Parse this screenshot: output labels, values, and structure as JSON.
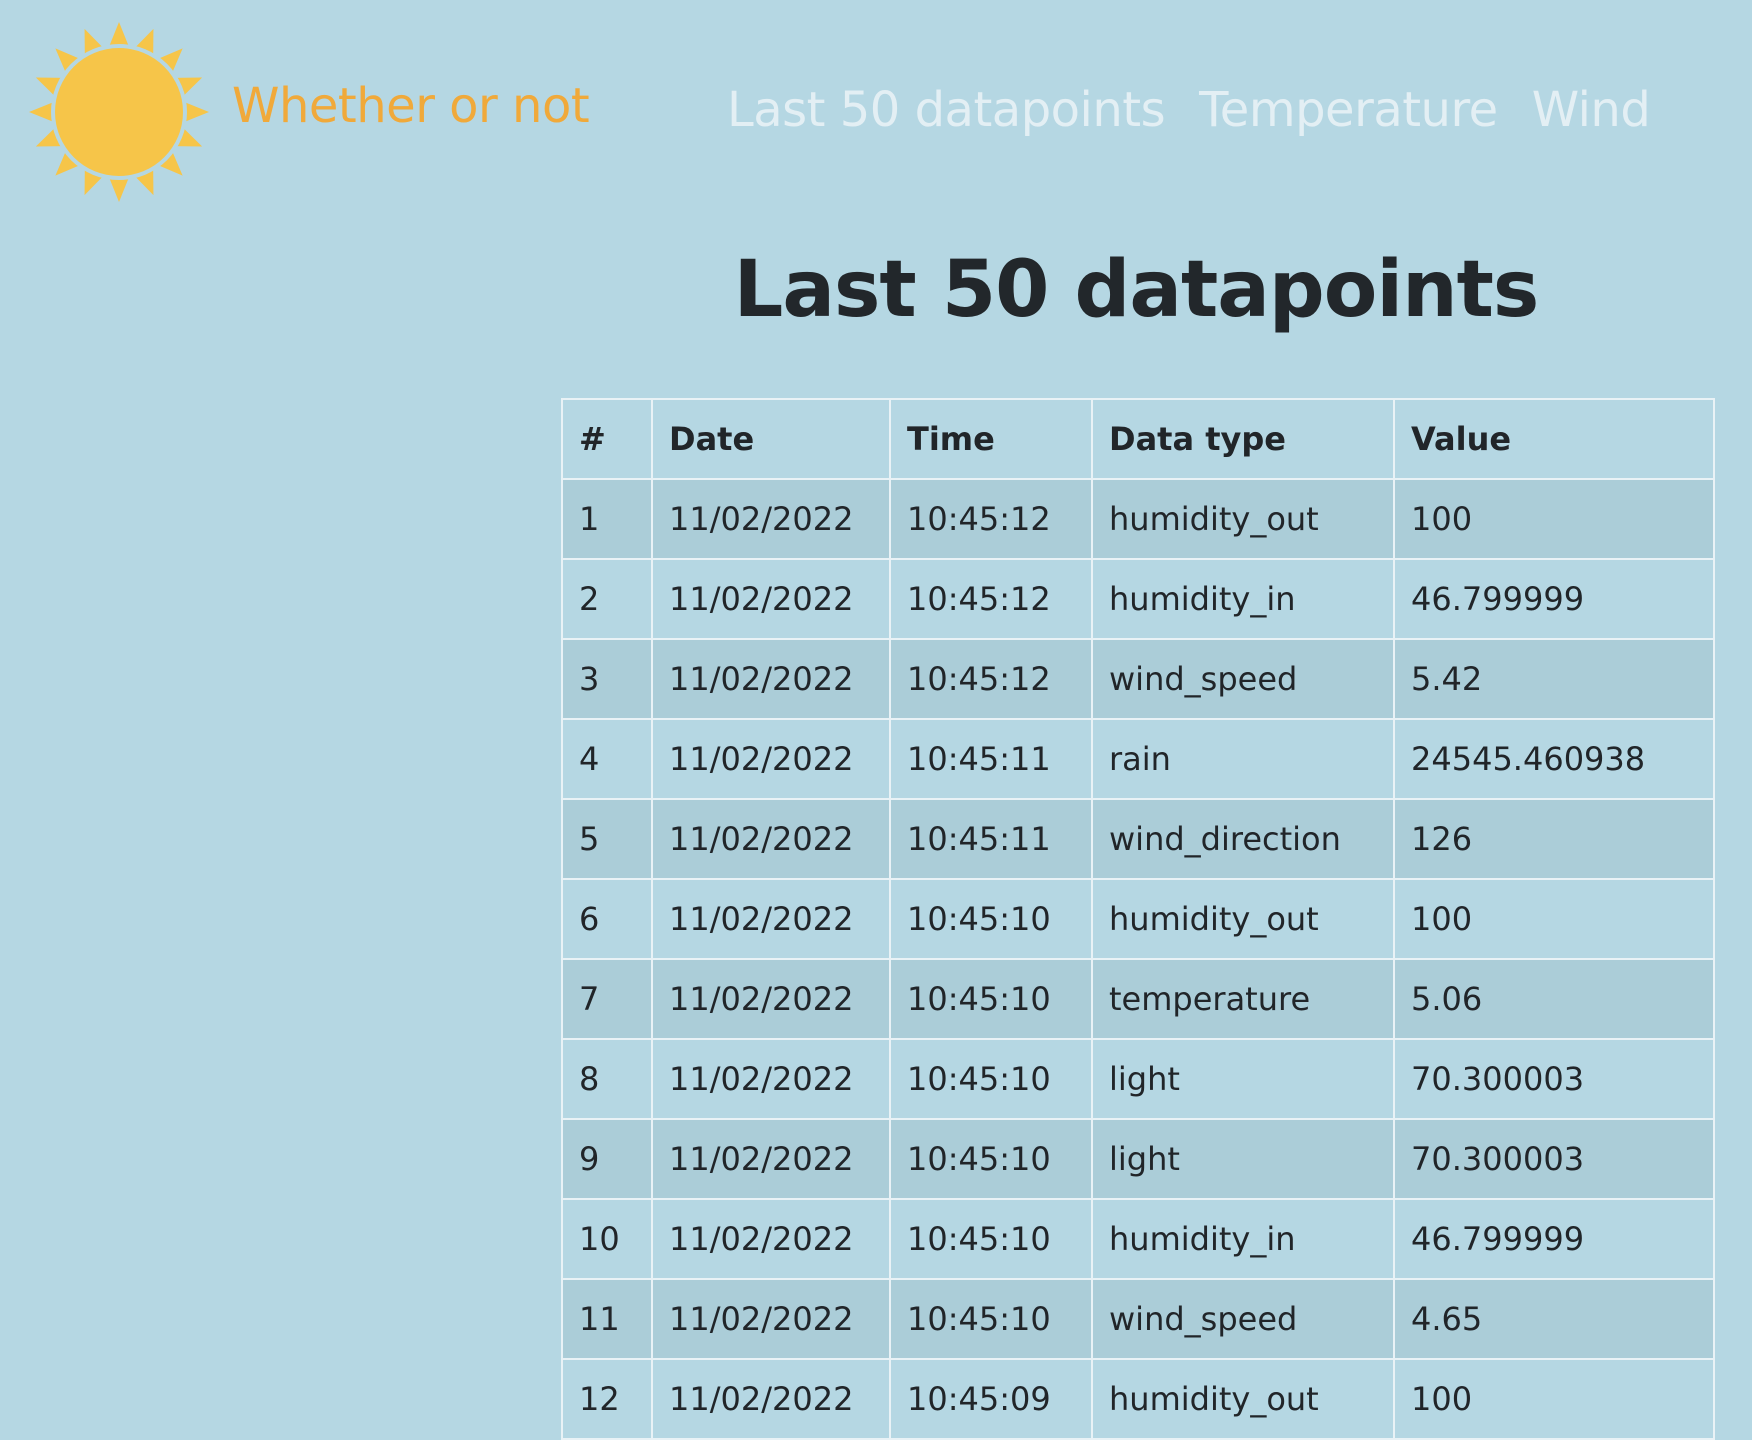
{
  "brand": {
    "name": "Whether or not",
    "sun_color": "#f6c549",
    "text_color": "#f0a93a"
  },
  "nav": {
    "items": [
      {
        "label": "Last 50 datapoints"
      },
      {
        "label": "Temperature"
      },
      {
        "label": "Wind"
      }
    ]
  },
  "page": {
    "title": "Last 50 datapoints"
  },
  "table": {
    "headers": [
      "#",
      "Date",
      "Time",
      "Data type",
      "Value"
    ],
    "rows": [
      [
        "1",
        "11/02/2022",
        "10:45:12",
        "humidity_out",
        "100"
      ],
      [
        "2",
        "11/02/2022",
        "10:45:12",
        "humidity_in",
        "46.799999"
      ],
      [
        "3",
        "11/02/2022",
        "10:45:12",
        "wind_speed",
        "5.42"
      ],
      [
        "4",
        "11/02/2022",
        "10:45:11",
        "rain",
        "24545.460938"
      ],
      [
        "5",
        "11/02/2022",
        "10:45:11",
        "wind_direction",
        "126"
      ],
      [
        "6",
        "11/02/2022",
        "10:45:10",
        "humidity_out",
        "100"
      ],
      [
        "7",
        "11/02/2022",
        "10:45:10",
        "temperature",
        "5.06"
      ],
      [
        "8",
        "11/02/2022",
        "10:45:10",
        "light",
        "70.300003"
      ],
      [
        "9",
        "11/02/2022",
        "10:45:10",
        "light",
        "70.300003"
      ],
      [
        "10",
        "11/02/2022",
        "10:45:10",
        "humidity_in",
        "46.799999"
      ],
      [
        "11",
        "11/02/2022",
        "10:45:10",
        "wind_speed",
        "4.65"
      ],
      [
        "12",
        "11/02/2022",
        "10:45:09",
        "humidity_out",
        "100"
      ]
    ]
  }
}
